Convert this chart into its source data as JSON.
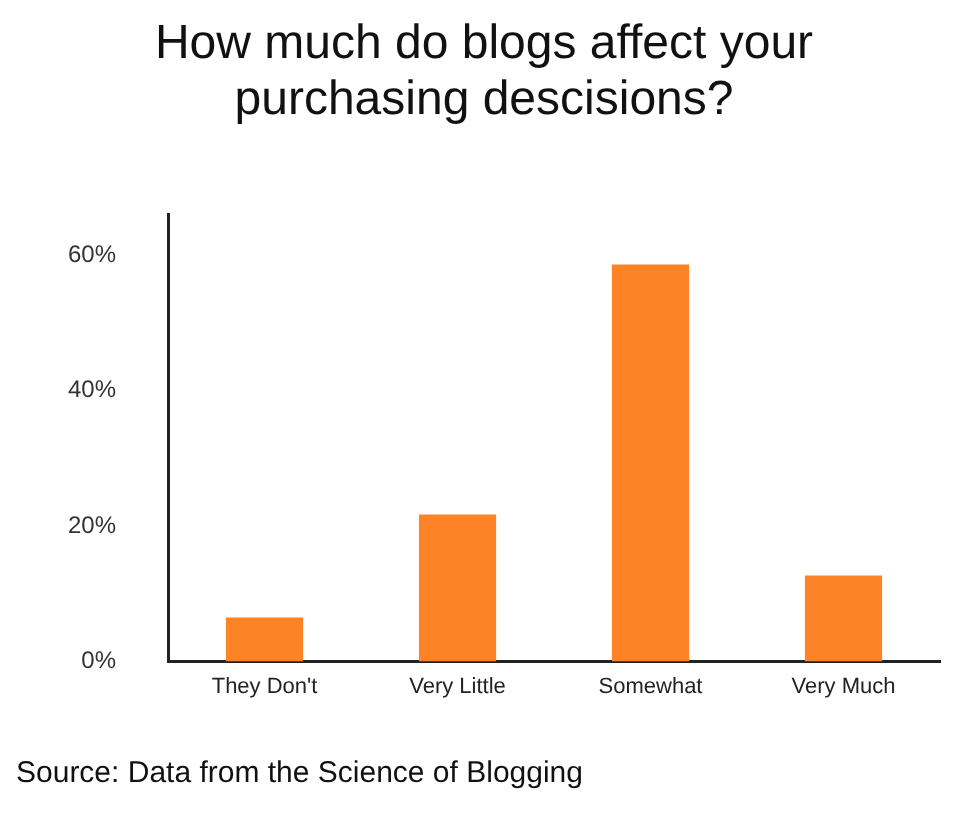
{
  "chart_data": {
    "type": "bar",
    "title": "How much do blogs affect your purchasing descisions?",
    "categories": [
      "They Don't",
      "Very Little",
      "Somewhat",
      "Very Much"
    ],
    "values": [
      6.5,
      21.7,
      58.6,
      12.7
    ],
    "color": "#fd8326",
    "ylim": [
      0,
      66
    ],
    "yticks": [
      {
        "value": 0,
        "label": "0%"
      },
      {
        "value": 20,
        "label": "20%"
      },
      {
        "value": 40,
        "label": "40%"
      },
      {
        "value": 60,
        "label": "60%"
      }
    ],
    "grid": false,
    "legend": false,
    "annotations": [
      "Source: Data from the Science of Blogging"
    ]
  }
}
